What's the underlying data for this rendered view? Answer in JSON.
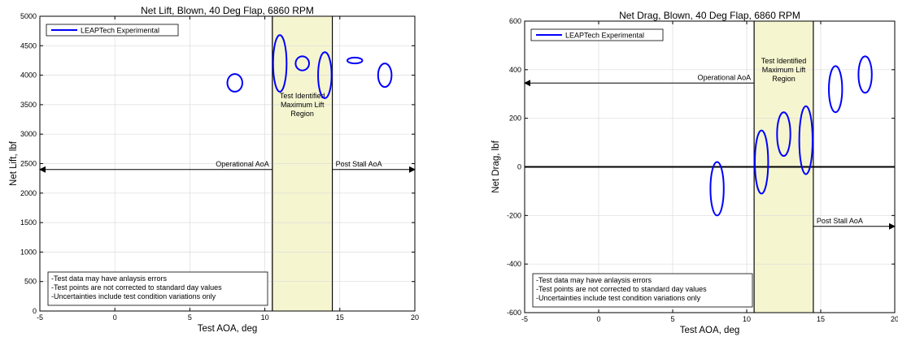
{
  "chart_data": [
    {
      "type": "scatter",
      "title": "Net Lift, Blown, 40 Deg Flap, 6860 RPM",
      "xlabel": "Test AOA, deg",
      "ylabel": "Net Lift, lbf",
      "xlim": [
        -5,
        20
      ],
      "ylim": [
        0,
        5000
      ],
      "xticks": [
        "-5",
        "0",
        "5",
        "10",
        "15",
        "20"
      ],
      "yticks": [
        "0",
        "500",
        "1000",
        "1500",
        "2000",
        "2500",
        "3000",
        "3500",
        "4000",
        "4500",
        "5000"
      ],
      "grid": true,
      "legend": {
        "placement": "top-left",
        "entries": [
          "LEAPTech Experimental"
        ]
      },
      "series": [
        {
          "name": "LEAPTech Experimental",
          "color": "#0000ff",
          "ellipses": [
            {
              "x": 8,
              "y": 3870,
              "rx": 0.5,
              "ry": 150
            },
            {
              "x": 11,
              "y": 4200,
              "rx": 0.45,
              "ry": 480
            },
            {
              "x": 12.5,
              "y": 4200,
              "rx": 0.45,
              "ry": 120
            },
            {
              "x": 14,
              "y": 4000,
              "rx": 0.45,
              "ry": 390
            },
            {
              "x": 16,
              "y": 4250,
              "rx": 0.5,
              "ry": 50
            },
            {
              "x": 18,
              "y": 4000,
              "rx": 0.45,
              "ry": 200
            }
          ]
        }
      ],
      "region": {
        "x0": 10.5,
        "x1": 14.5,
        "color": "#f5f5d0",
        "label": [
          "Test Identified",
          "Maximum Lift",
          "Region"
        ]
      },
      "arrows": [
        {
          "label": "Operational AoA",
          "y": 2400,
          "from": 10.5,
          "to": -5
        },
        {
          "label": "Post Stall AoA",
          "y": 2400,
          "from": 14.5,
          "to": 20
        }
      ],
      "notes": [
        "-Test data may have anlaysis errors",
        "-Test points are not corrected to standard day values",
        "-Uncertainties include test condition variations only"
      ]
    },
    {
      "type": "scatter",
      "title": "Net Drag, Blown, 40 Deg Flap, 6860 RPM",
      "xlabel": "Test AOA, deg",
      "ylabel": "Net Drag, lbf",
      "xlim": [
        -5,
        20
      ],
      "ylim": [
        -600,
        600
      ],
      "xticks": [
        "-5",
        "0",
        "5",
        "10",
        "15",
        "20"
      ],
      "yticks": [
        "-600",
        "-400",
        "-200",
        "0",
        "200",
        "400",
        "600"
      ],
      "grid": true,
      "zero_line": true,
      "legend": {
        "placement": "top-left",
        "entries": [
          "LEAPTech Experimental"
        ]
      },
      "series": [
        {
          "name": "LEAPTech Experimental",
          "color": "#0000ff",
          "ellipses": [
            {
              "x": 8,
              "y": -90,
              "rx": 0.45,
              "ry": 110
            },
            {
              "x": 11,
              "y": 20,
              "rx": 0.45,
              "ry": 130
            },
            {
              "x": 12.5,
              "y": 135,
              "rx": 0.45,
              "ry": 90
            },
            {
              "x": 14,
              "y": 110,
              "rx": 0.45,
              "ry": 140
            },
            {
              "x": 16,
              "y": 320,
              "rx": 0.45,
              "ry": 95
            },
            {
              "x": 18,
              "y": 380,
              "rx": 0.45,
              "ry": 75
            }
          ]
        }
      ],
      "region": {
        "x0": 10.5,
        "x1": 14.5,
        "color": "#f5f5d0",
        "label": [
          "Test Identified",
          "Maximum Lift",
          "Region"
        ]
      },
      "arrows": [
        {
          "label": "Operational AoA",
          "y": 345,
          "from": 10.5,
          "to": -5
        },
        {
          "label": "Post Stall AoA",
          "y": -245,
          "from": 14.5,
          "to": 20
        }
      ],
      "notes": [
        "-Test data may have anlaysis errors",
        "-Test points are not corrected to standard day values",
        "-Uncertainties include test condition variations only"
      ]
    }
  ]
}
